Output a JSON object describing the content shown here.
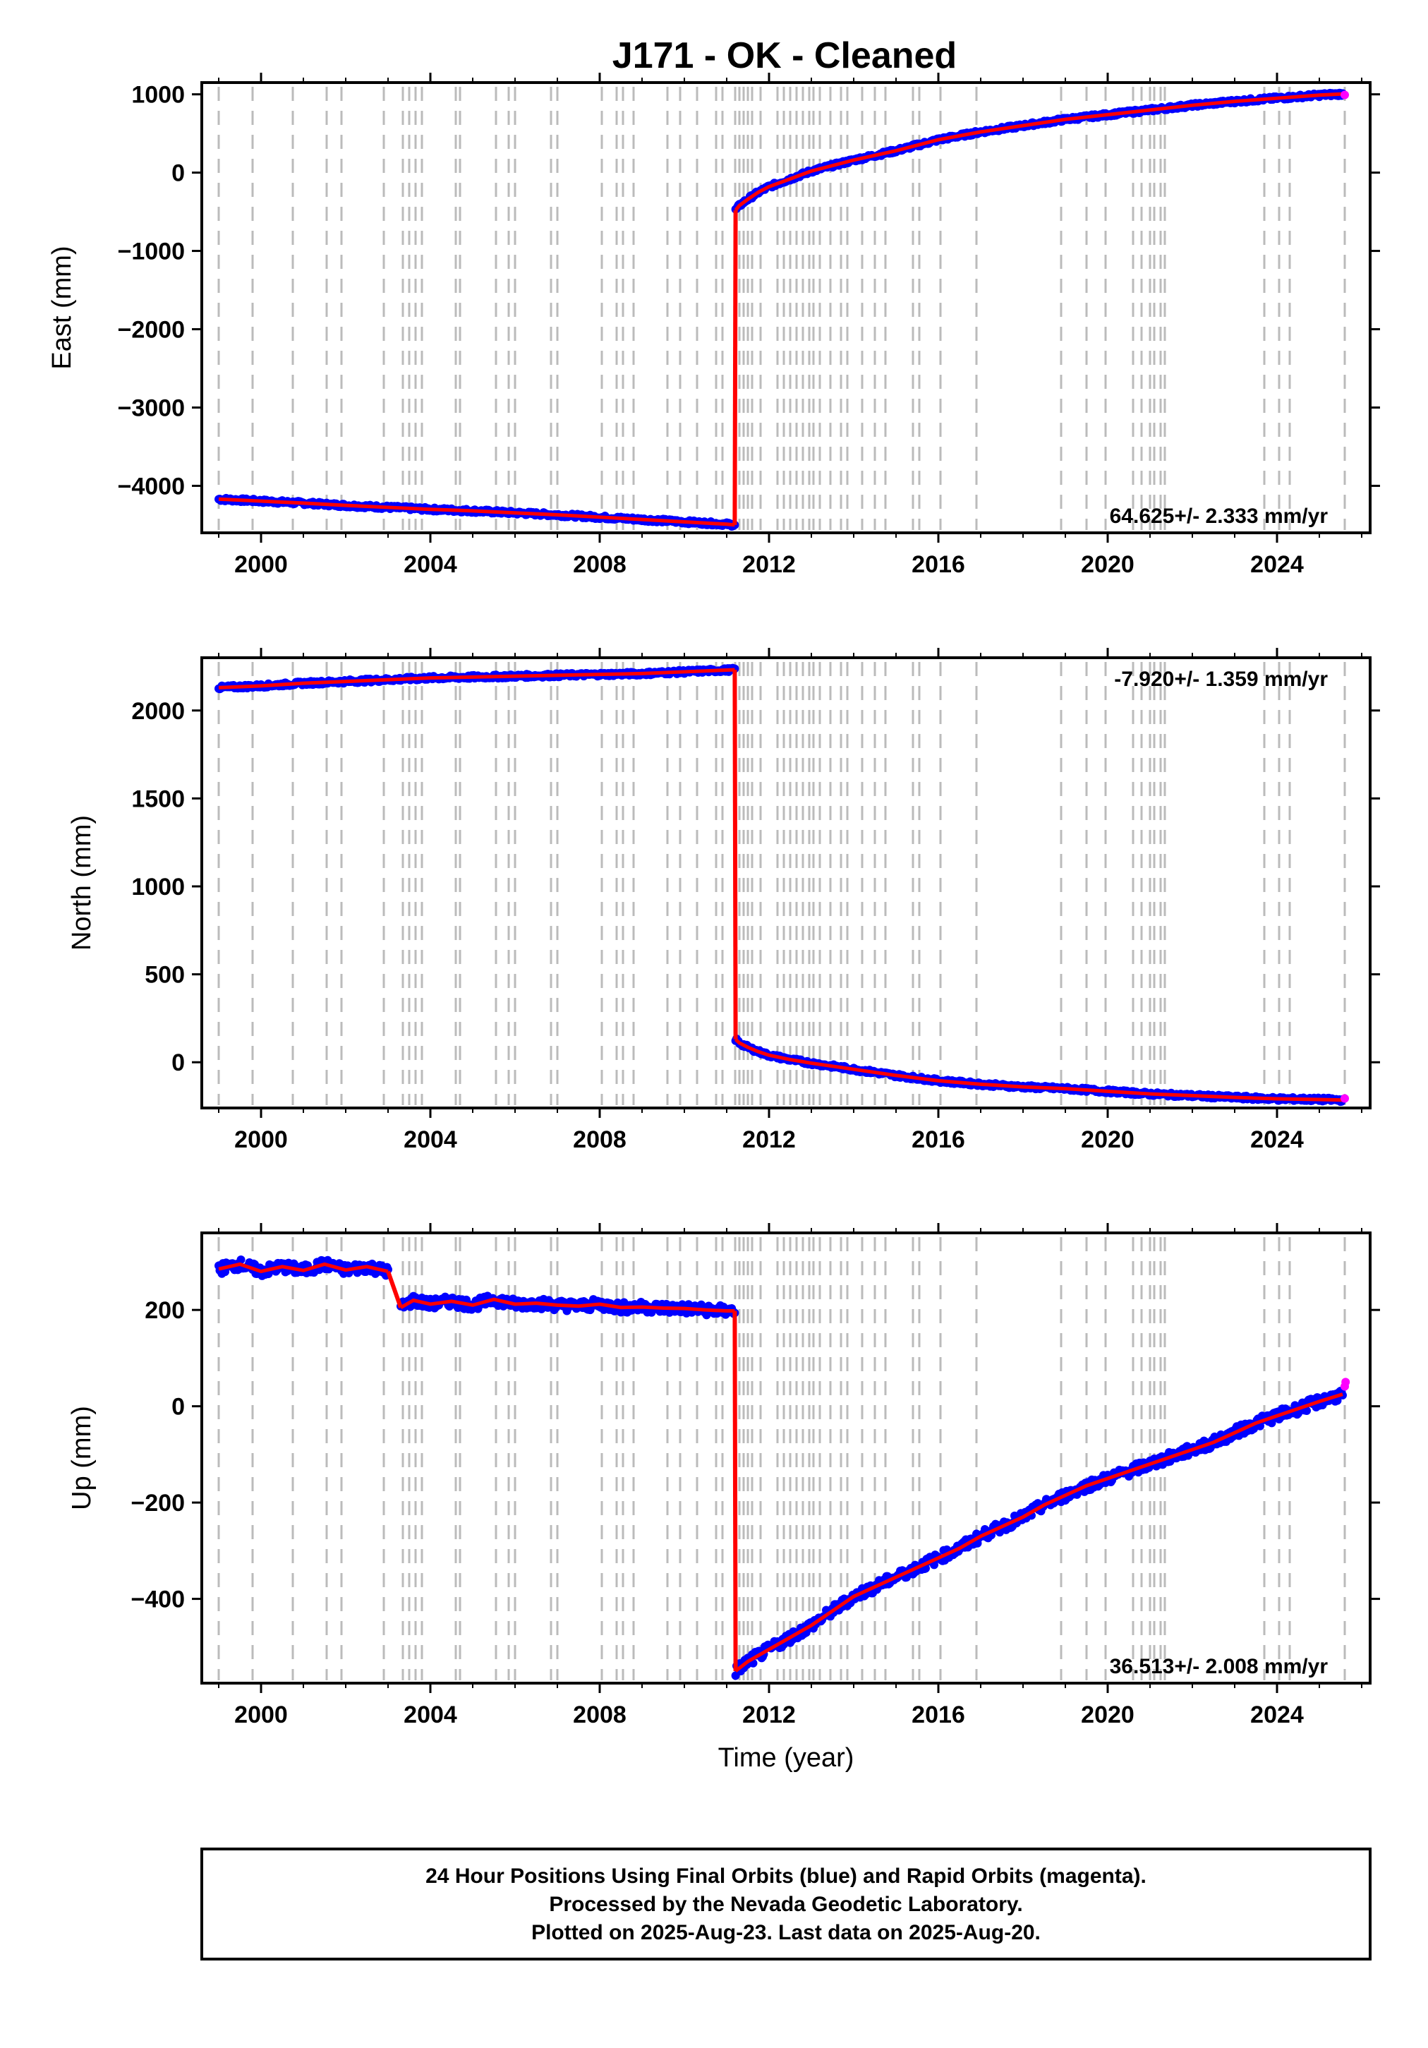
{
  "title": "J171  - OK - Cleaned",
  "footer": {
    "line1": "24 Hour Positions Using Final Orbits (blue) and Rapid Orbits (magenta).",
    "line2": "Processed by the Nevada Geodetic Laboratory.",
    "line3": "Plotted on 2025-Aug-23. Last data on 2025-Aug-20."
  },
  "colors": {
    "final_orbits": "#0000ff",
    "rapid_orbits": "#ff00ff",
    "model": "#ff0000",
    "event_lines": "#bbbbbb"
  },
  "chart_data": [
    {
      "type": "scatter",
      "component": "east",
      "ylabel": "East (mm)",
      "xlabel": "",
      "xlim": [
        1998.6,
        2026.2
      ],
      "ylim": [
        -4600,
        1150
      ],
      "xticks": [
        2000,
        2004,
        2008,
        2012,
        2016,
        2020,
        2024
      ],
      "yticks": [
        1000,
        0,
        -1000,
        -2000,
        -3000,
        -4000
      ],
      "ytick_labels": [
        "1000",
        "0",
        "−1000",
        "−2000",
        "−3000",
        "−4000"
      ],
      "rate_label": "64.625+/- 2.333 mm/yr",
      "rate_position": "bottom-right",
      "series": [
        {
          "style": "final",
          "x": [
            1999.0,
            2000.0,
            2001.0,
            2002.0,
            2003.0,
            2004.0,
            2005.0,
            2006.0,
            2007.0,
            2008.0,
            2009.0,
            2010.0,
            2011.0,
            2011.19
          ],
          "y": [
            -4170,
            -4195,
            -4220,
            -4250,
            -4275,
            -4300,
            -4320,
            -4345,
            -4370,
            -4400,
            -4430,
            -4460,
            -4490,
            -4500
          ]
        },
        {
          "style": "final",
          "x": [
            2011.21,
            2011.3,
            2011.5,
            2011.75,
            2012.0,
            2012.5,
            2013.0,
            2013.5,
            2014.0,
            2015.0,
            2016.0,
            2017.0,
            2018.0,
            2019.0,
            2020.0,
            2021.0,
            2022.0,
            2023.0,
            2024.0,
            2025.0,
            2025.55
          ],
          "y": [
            -480,
            -420,
            -340,
            -250,
            -180,
            -80,
            20,
            90,
            160,
            280,
            420,
            520,
            600,
            680,
            740,
            800,
            860,
            910,
            950,
            990,
            1005
          ]
        },
        {
          "style": "rapid",
          "x": [
            2025.6
          ],
          "y": [
            1010
          ]
        }
      ]
    },
    {
      "type": "scatter",
      "component": "north",
      "ylabel": "North (mm)",
      "xlabel": "",
      "xlim": [
        1998.6,
        2026.2
      ],
      "ylim": [
        -260,
        2300
      ],
      "xticks": [
        2000,
        2004,
        2008,
        2012,
        2016,
        2020,
        2024
      ],
      "yticks": [
        2000,
        1500,
        1000,
        500,
        0
      ],
      "ytick_labels": [
        "2000",
        "1500",
        "1000",
        "500",
        "0"
      ],
      "rate_label": "-7.920+/- 1.359 mm/yr",
      "rate_position": "top-right",
      "series": [
        {
          "style": "final",
          "x": [
            1999.0,
            2000.0,
            2001.0,
            2002.0,
            2003.0,
            2004.0,
            2005.0,
            2006.0,
            2007.0,
            2008.0,
            2009.0,
            2010.0,
            2011.0,
            2011.19
          ],
          "y": [
            2130,
            2140,
            2155,
            2165,
            2175,
            2185,
            2190,
            2195,
            2200,
            2205,
            2210,
            2220,
            2230,
            2232
          ]
        },
        {
          "style": "final",
          "x": [
            2011.21,
            2011.3,
            2011.5,
            2011.75,
            2012.0,
            2012.5,
            2013.0,
            2014.0,
            2015.0,
            2016.0,
            2017.0,
            2018.0,
            2019.0,
            2020.0,
            2021.0,
            2022.0,
            2023.0,
            2024.0,
            2025.0,
            2025.55
          ],
          "y": [
            130,
            110,
            85,
            60,
            40,
            15,
            -5,
            -40,
            -75,
            -105,
            -125,
            -140,
            -150,
            -165,
            -180,
            -190,
            -200,
            -208,
            -212,
            -215
          ]
        },
        {
          "style": "rapid",
          "x": [
            2025.6
          ],
          "y": [
            -215
          ]
        }
      ]
    },
    {
      "type": "scatter",
      "component": "up",
      "ylabel": "Up (mm)",
      "xlabel": "Time (year)",
      "xlim": [
        1998.6,
        2026.2
      ],
      "ylim": [
        -575,
        360
      ],
      "xticks": [
        2000,
        2004,
        2008,
        2012,
        2016,
        2020,
        2024
      ],
      "yticks": [
        200,
        0,
        -200,
        -400
      ],
      "ytick_labels": [
        "200",
        "0",
        "−200",
        "−400"
      ],
      "rate_label": "36.513+/- 2.008 mm/yr",
      "rate_position": "bottom-right",
      "series": [
        {
          "style": "final",
          "x": [
            1999.0,
            1999.5,
            2000.0,
            2000.5,
            2001.0,
            2001.5,
            2002.0,
            2002.5,
            2003.0
          ],
          "y": [
            285,
            295,
            280,
            290,
            282,
            295,
            283,
            290,
            280
          ]
        },
        {
          "style": "final",
          "x": [
            2003.3,
            2003.6,
            2004.0,
            2004.5,
            2005.0,
            2005.5,
            2006.0,
            2006.5,
            2007.0,
            2007.5,
            2008.0,
            2008.5,
            2009.0,
            2009.5,
            2010.0,
            2010.5,
            2011.0,
            2011.19
          ],
          "y": [
            205,
            220,
            212,
            218,
            210,
            222,
            212,
            214,
            210,
            208,
            212,
            205,
            206,
            204,
            203,
            200,
            198,
            198
          ]
        },
        {
          "style": "final",
          "x": [
            2011.21,
            2011.5,
            2012.0,
            2012.5,
            2013.0,
            2013.5,
            2014.0,
            2014.5,
            2015.0,
            2015.5,
            2016.0,
            2016.5,
            2017.0,
            2017.5,
            2018.0,
            2018.5,
            2019.0,
            2019.5,
            2020.0,
            2020.5,
            2021.0,
            2021.5,
            2022.0,
            2022.5,
            2023.0,
            2023.5,
            2024.0,
            2024.5,
            2025.0,
            2025.55
          ],
          "y": [
            -550,
            -530,
            -505,
            -480,
            -455,
            -425,
            -395,
            -375,
            -355,
            -335,
            -315,
            -295,
            -270,
            -250,
            -230,
            -205,
            -185,
            -165,
            -150,
            -135,
            -120,
            -105,
            -90,
            -75,
            -55,
            -35,
            -20,
            -5,
            10,
            25
          ]
        },
        {
          "style": "rapid",
          "x": [
            2025.6,
            2025.62
          ],
          "y": [
            30,
            50
          ]
        }
      ]
    }
  ]
}
